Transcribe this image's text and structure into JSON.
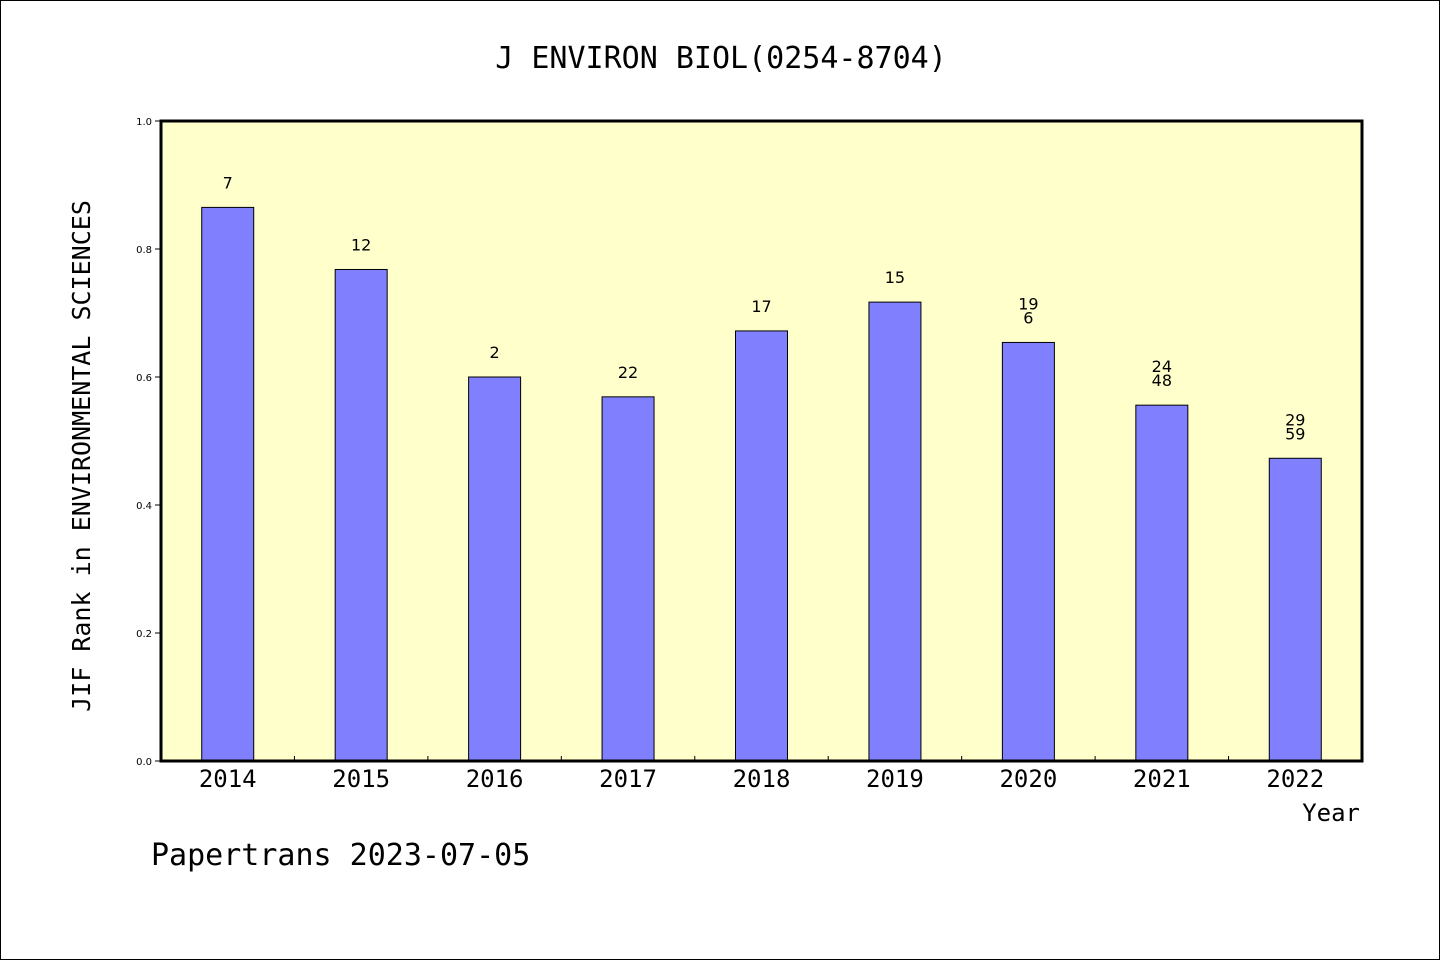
{
  "chart_data": {
    "type": "bar",
    "title": "J ENVIRON BIOL(0254-8704)",
    "xlabel": "Year",
    "ylabel": "JIF Rank in ENVIRONMENTAL SCIENCES",
    "ylim": [
      0,
      1.0
    ],
    "yticks": [
      "0.0",
      "0.2",
      "0.4",
      "0.6",
      "0.8",
      "1.0"
    ],
    "categories": [
      "2014",
      "2015",
      "2016",
      "2017",
      "2018",
      "2019",
      "2020",
      "2021",
      "2022"
    ],
    "values": [
      0.865,
      0.768,
      0.6,
      0.569,
      0.672,
      0.717,
      0.654,
      0.556,
      0.473
    ],
    "bar_labels": [
      [
        "7"
      ],
      [
        "12"
      ],
      [
        "2"
      ],
      [
        "22"
      ],
      [
        "17"
      ],
      [
        "15"
      ],
      [
        "19",
        "6"
      ],
      [
        "24",
        "48"
      ],
      [
        "29",
        "59"
      ]
    ],
    "grid": false,
    "colors": {
      "bar": "#8080ff",
      "plot_background": "#ffffcc",
      "axis": "#000000"
    }
  },
  "footer": {
    "text": "Papertrans 2023-07-05"
  }
}
